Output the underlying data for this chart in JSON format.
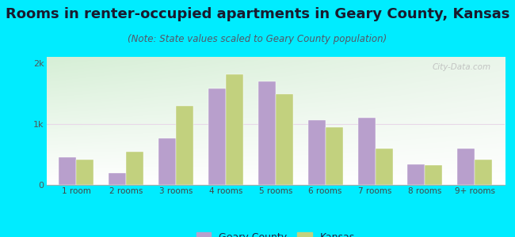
{
  "title": "Rooms in renter-occupied apartments in Geary County, Kansas",
  "subtitle": "(Note: State values scaled to Geary County population)",
  "categories": [
    "1 room",
    "2 rooms",
    "3 rooms",
    "4 rooms",
    "5 rooms",
    "6 rooms",
    "7 rooms",
    "8 rooms",
    "9+ rooms"
  ],
  "geary_county": [
    450,
    200,
    760,
    1580,
    1700,
    1060,
    1100,
    340,
    590
  ],
  "kansas": [
    415,
    550,
    1300,
    1820,
    1490,
    950,
    595,
    320,
    415
  ],
  "geary_color": "#b89fcc",
  "kansas_color": "#c2d17e",
  "background_outer": "#00ecff",
  "background_inner_top_left": "#d6efd6",
  "background_inner_top_right": "#eaf5ea",
  "background_inner_bottom": "#ffffff",
  "grid_color": "#e8d8e8",
  "bar_width": 0.35,
  "ylim": [
    0,
    2100
  ],
  "yticks": [
    0,
    1000,
    2000
  ],
  "ytick_labels": [
    "0",
    "1k",
    "2k"
  ],
  "legend_geary": "Geary County",
  "legend_kansas": "Kansas",
  "title_fontsize": 13,
  "subtitle_fontsize": 8.5,
  "watermark": "City-Data.com"
}
